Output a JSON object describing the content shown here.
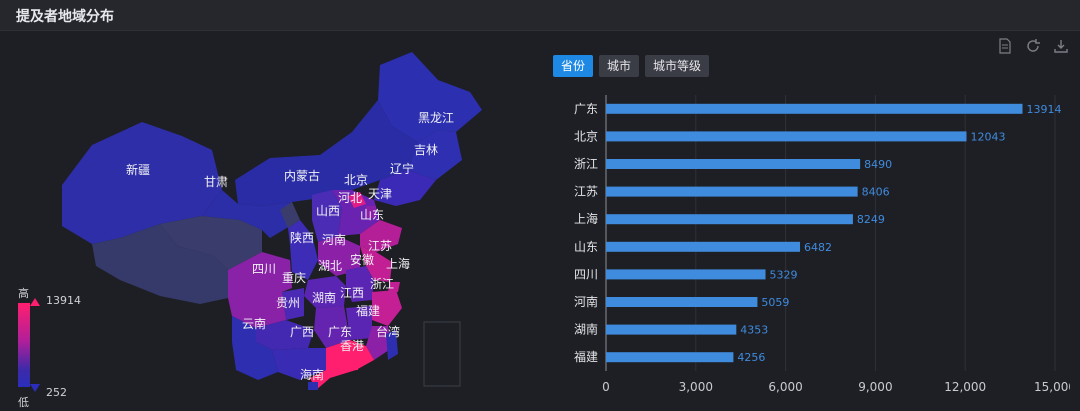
{
  "header": {
    "title": "提及者地域分布"
  },
  "toolbar": {
    "icons": [
      "document-icon",
      "refresh-icon",
      "download-icon"
    ]
  },
  "tabs": [
    {
      "label": "省份",
      "active": true
    },
    {
      "label": "城市",
      "active": false
    },
    {
      "label": "城市等级",
      "active": false
    }
  ],
  "map": {
    "legend": {
      "high_label": "高",
      "low_label": "低",
      "max": "13914",
      "min": "252"
    },
    "regions": [
      "黑龙江",
      "吉林",
      "辽宁",
      "内蒙古",
      "北京",
      "天津",
      "河北",
      "新疆",
      "甘肃",
      "山西",
      "山东",
      "陕西",
      "河南",
      "江苏",
      "四川",
      "重庆",
      "湖北",
      "安徽",
      "上海",
      "浙江",
      "贵州",
      "湖南",
      "江西",
      "福建",
      "云南",
      "广西",
      "广东",
      "香港",
      "台湾",
      "海南"
    ]
  },
  "chart_data": {
    "type": "bar",
    "orientation": "horizontal",
    "categories": [
      "广东",
      "北京",
      "浙江",
      "江苏",
      "上海",
      "山东",
      "四川",
      "河南",
      "湖南",
      "福建"
    ],
    "values": [
      13914,
      12043,
      8490,
      8406,
      8249,
      6482,
      5329,
      5059,
      4353,
      4256
    ],
    "xlim": [
      0,
      15000
    ],
    "xticks": [
      "0",
      "3,000",
      "6,000",
      "9,000",
      "12,000",
      "15,000"
    ],
    "grid": true,
    "bar_color": "#3f8bde",
    "label_color": "#3f8bde"
  }
}
